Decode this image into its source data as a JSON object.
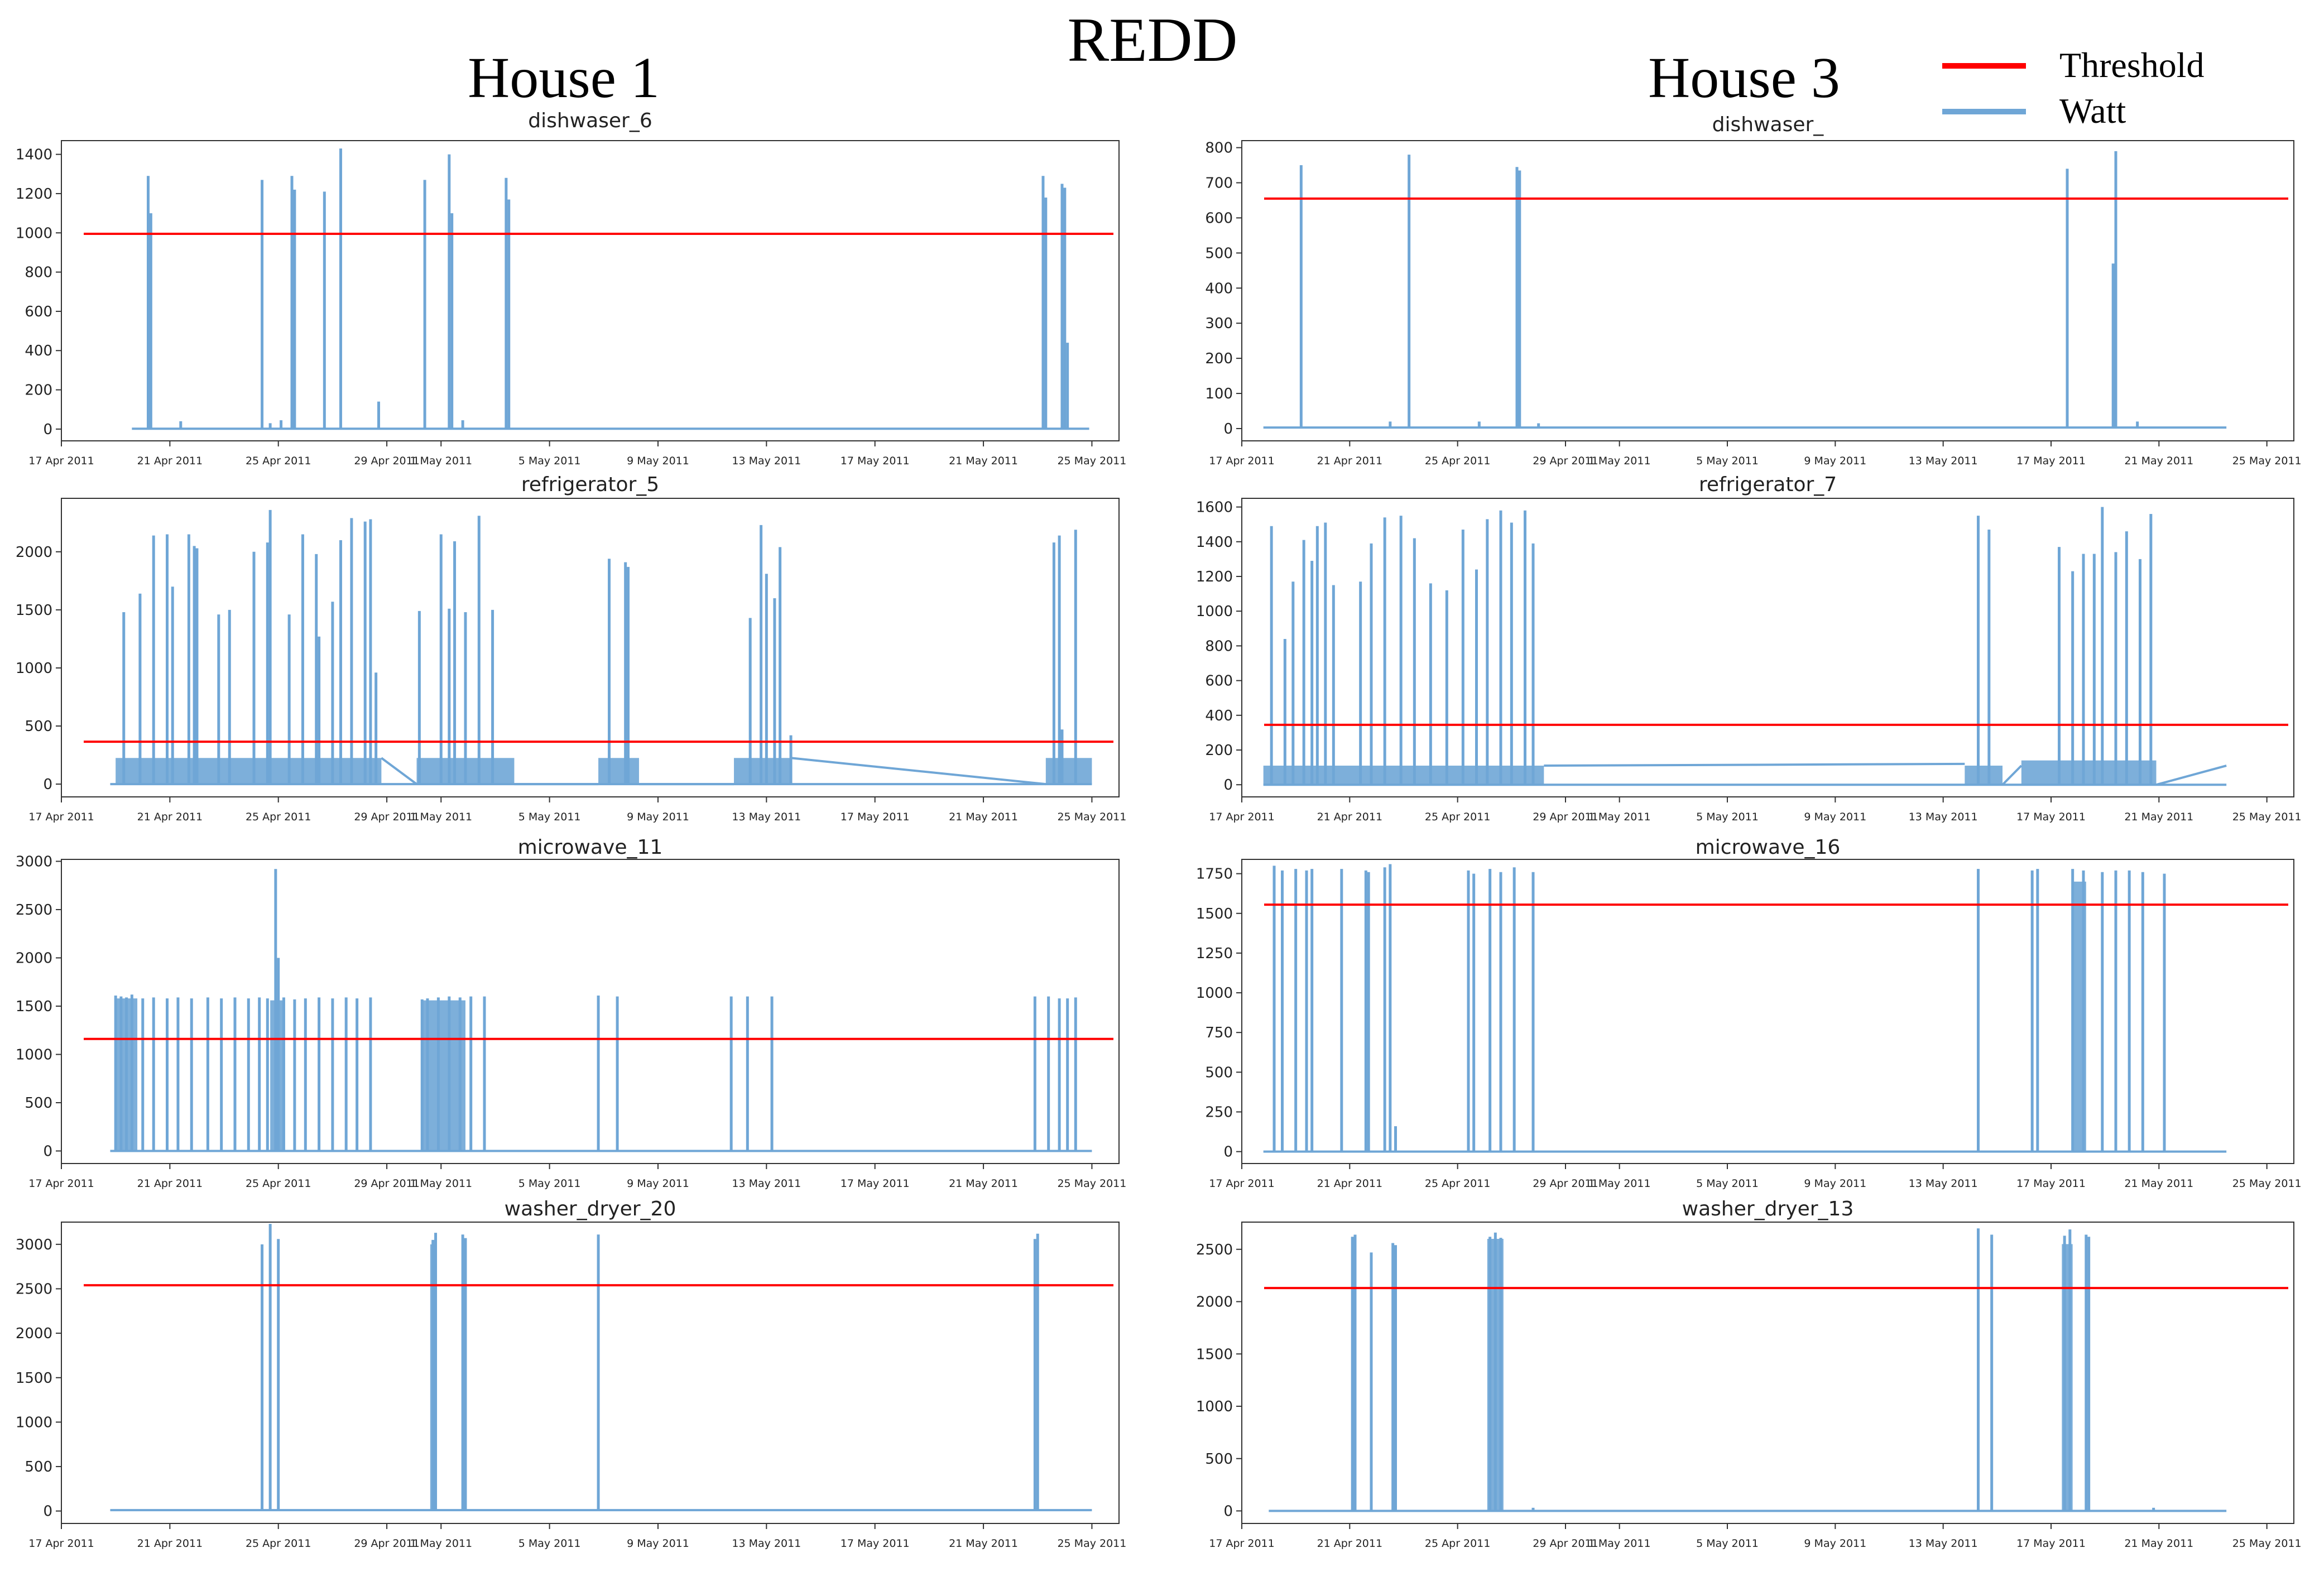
{
  "figure": {
    "title": "REDD",
    "column_titles": [
      "House 1",
      "House 3"
    ],
    "legend": [
      {
        "label": "Threshold",
        "color": "#ff0000"
      },
      {
        "label": "Watt",
        "color": "#6fa6d6"
      }
    ]
  },
  "chart_data": [
    {
      "type": "line",
      "title": "dishwaser_6",
      "house": "House 1",
      "threshold": 995,
      "ylim": [
        -60,
        1470
      ],
      "yticks": [
        0,
        200,
        400,
        600,
        800,
        1000,
        1200,
        1400
      ],
      "xlim": [
        0,
        39
      ],
      "data_range": [
        2.6,
        37.9
      ],
      "xtick_positions": [
        0,
        4,
        8,
        12,
        14,
        18,
        22,
        26,
        30,
        34,
        38
      ],
      "xtick_labels": [
        "17 Apr 2011",
        "21 Apr 2011",
        "25 Apr 2011",
        "29 Apr 2011",
        "1 May 2011",
        "5 May 2011",
        "9 May 2011",
        "13 May 2011",
        "17 May 2011",
        "21 May 2011",
        "25 May 2011"
      ],
      "baseline": 2,
      "spikes": [
        [
          3.2,
          1290
        ],
        [
          3.3,
          1100
        ],
        [
          7.4,
          1270
        ],
        [
          8.5,
          1290
        ],
        [
          8.6,
          1220
        ],
        [
          9.7,
          1210
        ],
        [
          10.3,
          1430
        ],
        [
          11.7,
          140
        ],
        [
          13.4,
          1270
        ],
        [
          14.3,
          1400
        ],
        [
          14.4,
          1100
        ],
        [
          16.4,
          1280
        ],
        [
          16.5,
          1170
        ],
        [
          36.2,
          1290
        ],
        [
          36.3,
          1180
        ],
        [
          36.9,
          1250
        ],
        [
          37.0,
          1230
        ],
        [
          37.1,
          440
        ],
        [
          4.4,
          40
        ],
        [
          8.1,
          45
        ],
        [
          7.7,
          30
        ],
        [
          14.8,
          45
        ]
      ],
      "blocks": [],
      "plateaus": []
    },
    {
      "type": "line",
      "title": "dishwaser_",
      "house": "House 3",
      "threshold": 655,
      "ylim": [
        -35,
        820
      ],
      "yticks": [
        0,
        100,
        200,
        300,
        400,
        500,
        600,
        700,
        800
      ],
      "xlim": [
        0,
        39
      ],
      "data_range": [
        0.8,
        36.5
      ],
      "xtick_positions": [
        0,
        4,
        8,
        12,
        14,
        18,
        22,
        26,
        30,
        34,
        38
      ],
      "xtick_labels": [
        "17 Apr 2011",
        "21 Apr 2011",
        "25 Apr 2011",
        "29 Apr 2011",
        "1 May 2011",
        "5 May 2011",
        "9 May 2011",
        "13 May 2011",
        "17 May 2011",
        "21 May 2011",
        "25 May 2011"
      ],
      "baseline": 3,
      "spikes": [
        [
          2.2,
          750
        ],
        [
          6.2,
          780
        ],
        [
          10.2,
          745
        ],
        [
          10.3,
          735
        ],
        [
          30.6,
          740
        ],
        [
          32.4,
          790
        ],
        [
          32.3,
          470
        ],
        [
          5.5,
          20
        ],
        [
          8.8,
          20
        ],
        [
          11.0,
          15
        ],
        [
          33.2,
          20
        ]
      ],
      "blocks": [],
      "plateaus": []
    },
    {
      "type": "line",
      "title": "refrigerator_5",
      "house": "House 1",
      "threshold": 365,
      "ylim": [
        -110,
        2460
      ],
      "yticks": [
        0,
        500,
        1000,
        1500,
        2000
      ],
      "xlim": [
        0,
        39
      ],
      "data_range": [
        1.8,
        38.0
      ],
      "xtick_positions": [
        0,
        4,
        8,
        12,
        14,
        18,
        22,
        26,
        30,
        34,
        38
      ],
      "xtick_labels": [
        "17 Apr 2011",
        "21 Apr 2011",
        "25 Apr 2011",
        "29 Apr 2011",
        "1 May 2011",
        "5 May 2011",
        "9 May 2011",
        "13 May 2011",
        "17 May 2011",
        "21 May 2011",
        "25 May 2011"
      ],
      "baseline": 0,
      "spikes": [
        [
          2.3,
          1480
        ],
        [
          2.9,
          1640
        ],
        [
          3.4,
          2140
        ],
        [
          3.9,
          2150
        ],
        [
          4.1,
          1700
        ],
        [
          4.7,
          2150
        ],
        [
          4.9,
          2050
        ],
        [
          5.0,
          2030
        ],
        [
          5.8,
          1460
        ],
        [
          6.2,
          1500
        ],
        [
          7.1,
          2000
        ],
        [
          7.6,
          2080
        ],
        [
          7.7,
          2360
        ],
        [
          8.4,
          1460
        ],
        [
          8.9,
          2150
        ],
        [
          9.4,
          1980
        ],
        [
          9.5,
          1270
        ],
        [
          10.0,
          1570
        ],
        [
          10.3,
          2100
        ],
        [
          10.7,
          2290
        ],
        [
          11.2,
          2260
        ],
        [
          11.4,
          2280
        ],
        [
          11.6,
          960
        ],
        [
          13.2,
          1490
        ],
        [
          14.0,
          2150
        ],
        [
          14.3,
          1510
        ],
        [
          14.5,
          2090
        ],
        [
          14.9,
          1480
        ],
        [
          15.4,
          2310
        ],
        [
          15.9,
          1500
        ],
        [
          20.2,
          1940
        ],
        [
          20.8,
          1910
        ],
        [
          20.9,
          1870
        ],
        [
          25.4,
          1430
        ],
        [
          25.8,
          2230
        ],
        [
          26.0,
          1810
        ],
        [
          26.3,
          1600
        ],
        [
          26.5,
          2040
        ],
        [
          26.9,
          420
        ],
        [
          36.6,
          2080
        ],
        [
          36.8,
          2140
        ],
        [
          36.9,
          470
        ],
        [
          37.4,
          2190
        ]
      ],
      "blocks": [
        [
          2.0,
          11.8,
          225
        ],
        [
          13.1,
          16.7,
          225
        ],
        [
          19.8,
          21.3,
          225
        ],
        [
          24.8,
          26.9,
          225
        ],
        [
          36.3,
          38.0,
          225
        ]
      ],
      "plateaus": [
        [
          11.8,
          13.1,
          225,
          0
        ],
        [
          16.7,
          19.8,
          0,
          0
        ],
        [
          21.3,
          24.8,
          0,
          0
        ],
        [
          26.9,
          36.3,
          225,
          0
        ]
      ]
    },
    {
      "type": "line",
      "title": "refrigerator_7",
      "house": "House 3",
      "threshold": 345,
      "ylim": [
        -70,
        1650
      ],
      "yticks": [
        0,
        200,
        400,
        600,
        800,
        1000,
        1200,
        1400,
        1600
      ],
      "xlim": [
        0,
        39
      ],
      "data_range": [
        0.8,
        36.5
      ],
      "xtick_positions": [
        0,
        4,
        8,
        12,
        14,
        18,
        22,
        26,
        30,
        34,
        38
      ],
      "xtick_labels": [
        "17 Apr 2011",
        "21 Apr 2011",
        "25 Apr 2011",
        "29 Apr 2011",
        "1 May 2011",
        "5 May 2011",
        "9 May 2011",
        "13 May 2011",
        "17 May 2011",
        "21 May 2011",
        "25 May 2011"
      ],
      "baseline": 0,
      "spikes": [
        [
          1.1,
          1490
        ],
        [
          1.6,
          840
        ],
        [
          1.9,
          1170
        ],
        [
          2.3,
          1410
        ],
        [
          2.6,
          1290
        ],
        [
          2.8,
          1490
        ],
        [
          3.1,
          1510
        ],
        [
          3.4,
          1150
        ],
        [
          4.4,
          1170
        ],
        [
          4.8,
          1390
        ],
        [
          5.3,
          1540
        ],
        [
          5.9,
          1550
        ],
        [
          6.4,
          1420
        ],
        [
          7.0,
          1160
        ],
        [
          7.6,
          1120
        ],
        [
          8.2,
          1470
        ],
        [
          8.7,
          1240
        ],
        [
          9.1,
          1530
        ],
        [
          9.6,
          1580
        ],
        [
          10.0,
          1510
        ],
        [
          10.5,
          1580
        ],
        [
          10.8,
          1390
        ],
        [
          27.3,
          1550
        ],
        [
          27.7,
          1470
        ],
        [
          30.3,
          1370
        ],
        [
          30.8,
          1230
        ],
        [
          31.2,
          1330
        ],
        [
          31.6,
          1330
        ],
        [
          31.9,
          1600
        ],
        [
          32.4,
          1340
        ],
        [
          32.8,
          1460
        ],
        [
          33.3,
          1300
        ],
        [
          33.7,
          1560
        ]
      ],
      "blocks": [
        [
          0.8,
          11.2,
          110
        ],
        [
          26.8,
          28.2,
          110
        ],
        [
          28.9,
          33.9,
          140
        ]
      ],
      "plateaus": [
        [
          11.2,
          26.8,
          110,
          120
        ],
        [
          28.2,
          28.9,
          0,
          110
        ],
        [
          33.9,
          36.5,
          0,
          110
        ]
      ]
    },
    {
      "type": "line",
      "title": "microwave_11",
      "house": "House 1",
      "threshold": 1160,
      "ylim": [
        -130,
        3020
      ],
      "yticks": [
        0,
        500,
        1000,
        1500,
        2000,
        2500,
        3000
      ],
      "xlim": [
        0,
        39
      ],
      "data_range": [
        1.8,
        38.0
      ],
      "xtick_positions": [
        0,
        4,
        8,
        12,
        14,
        18,
        22,
        26,
        30,
        34,
        38
      ],
      "xtick_labels": [
        "17 Apr 2011",
        "21 Apr 2011",
        "25 Apr 2011",
        "29 Apr 2011",
        "1 May 2011",
        "5 May 2011",
        "9 May 2011",
        "13 May 2011",
        "17 May 2011",
        "21 May 2011",
        "25 May 2011"
      ],
      "baseline": 0,
      "spikes": [
        [
          2.0,
          1610
        ],
        [
          2.2,
          1600
        ],
        [
          2.4,
          1590
        ],
        [
          2.6,
          1620
        ],
        [
          3.0,
          1580
        ],
        [
          3.4,
          1590
        ],
        [
          3.9,
          1580
        ],
        [
          4.3,
          1590
        ],
        [
          4.8,
          1580
        ],
        [
          5.4,
          1590
        ],
        [
          5.9,
          1580
        ],
        [
          6.4,
          1590
        ],
        [
          6.9,
          1580
        ],
        [
          7.3,
          1590
        ],
        [
          7.6,
          1580
        ],
        [
          7.9,
          2920
        ],
        [
          8.0,
          2000
        ],
        [
          8.2,
          1590
        ],
        [
          8.6,
          1570
        ],
        [
          9.0,
          1580
        ],
        [
          9.5,
          1590
        ],
        [
          10.0,
          1580
        ],
        [
          10.5,
          1590
        ],
        [
          10.9,
          1580
        ],
        [
          11.4,
          1590
        ],
        [
          13.3,
          1570
        ],
        [
          13.5,
          1580
        ],
        [
          13.9,
          1590
        ],
        [
          14.3,
          1600
        ],
        [
          14.7,
          1590
        ],
        [
          15.1,
          1600
        ],
        [
          15.6,
          1600
        ],
        [
          19.8,
          1610
        ],
        [
          20.5,
          1600
        ],
        [
          24.7,
          1600
        ],
        [
          25.3,
          1600
        ],
        [
          26.2,
          1600
        ],
        [
          35.9,
          1600
        ],
        [
          36.4,
          1600
        ],
        [
          36.8,
          1580
        ],
        [
          37.1,
          1580
        ],
        [
          37.4,
          1590
        ]
      ],
      "blocks": [
        [
          2.0,
          2.8,
          1580
        ],
        [
          7.7,
          8.2,
          1560
        ],
        [
          13.3,
          14.9,
          1560
        ]
      ],
      "plateaus": []
    },
    {
      "type": "line",
      "title": "microwave_16",
      "house": "House 3",
      "threshold": 1555,
      "ylim": [
        -75,
        1840
      ],
      "yticks": [
        0,
        250,
        500,
        750,
        1000,
        1250,
        1500,
        1750
      ],
      "xlim": [
        0,
        39
      ],
      "data_range": [
        0.8,
        36.5
      ],
      "xtick_positions": [
        0,
        4,
        8,
        12,
        14,
        18,
        22,
        26,
        30,
        34,
        38
      ],
      "xtick_labels": [
        "17 Apr 2011",
        "21 Apr 2011",
        "25 Apr 2011",
        "29 Apr 2011",
        "1 May 2011",
        "5 May 2011",
        "9 May 2011",
        "13 May 2011",
        "17 May 2011",
        "21 May 2011",
        "25 May 2011"
      ],
      "baseline": 0,
      "spikes": [
        [
          1.2,
          1800
        ],
        [
          1.5,
          1770
        ],
        [
          2.0,
          1780
        ],
        [
          2.4,
          1770
        ],
        [
          2.6,
          1780
        ],
        [
          3.7,
          1780
        ],
        [
          4.6,
          1770
        ],
        [
          4.7,
          1760
        ],
        [
          5.3,
          1790
        ],
        [
          5.5,
          1810
        ],
        [
          5.7,
          160
        ],
        [
          8.4,
          1770
        ],
        [
          8.6,
          1750
        ],
        [
          9.2,
          1780
        ],
        [
          9.6,
          1760
        ],
        [
          10.1,
          1790
        ],
        [
          10.8,
          1760
        ],
        [
          27.3,
          1780
        ],
        [
          29.3,
          1770
        ],
        [
          29.5,
          1780
        ],
        [
          30.8,
          1780
        ],
        [
          31.2,
          1770
        ],
        [
          31.9,
          1760
        ],
        [
          32.4,
          1770
        ],
        [
          32.9,
          1770
        ],
        [
          33.4,
          1760
        ],
        [
          34.2,
          1750
        ]
      ],
      "blocks": [
        [
          30.8,
          31.3,
          1700
        ]
      ],
      "plateaus": []
    },
    {
      "type": "line",
      "title": "washer_dryer_20",
      "house": "House 1",
      "threshold": 2540,
      "ylim": [
        -140,
        3250
      ],
      "yticks": [
        0,
        500,
        1000,
        1500,
        2000,
        2500,
        3000
      ],
      "xlim": [
        0,
        39
      ],
      "data_range": [
        1.8,
        38.0
      ],
      "xtick_positions": [
        0,
        4,
        8,
        12,
        14,
        18,
        22,
        26,
        30,
        34,
        38
      ],
      "xtick_labels": [
        "17 Apr 2011",
        "21 Apr 2011",
        "25 Apr 2011",
        "29 Apr 2011",
        "1 May 2011",
        "5 May 2011",
        "9 May 2011",
        "13 May 2011",
        "17 May 2011",
        "21 May 2011",
        "25 May 2011"
      ],
      "baseline": 10,
      "spikes": [
        [
          7.4,
          3000
        ],
        [
          7.7,
          3230
        ],
        [
          8.0,
          3060
        ],
        [
          13.7,
          3050
        ],
        [
          13.8,
          3130
        ],
        [
          14.8,
          3110
        ],
        [
          14.9,
          3070
        ],
        [
          19.8,
          3110
        ],
        [
          35.9,
          3060
        ],
        [
          36.0,
          3120
        ]
      ],
      "blocks": [
        [
          13.6,
          13.85,
          3000
        ]
      ],
      "plateaus": []
    },
    {
      "type": "line",
      "title": "washer_dryer_13",
      "house": "House 3",
      "threshold": 2130,
      "ylim": [
        -120,
        2760
      ],
      "yticks": [
        0,
        500,
        1000,
        1500,
        2000,
        2500
      ],
      "xlim": [
        0,
        39
      ],
      "data_range": [
        1.0,
        36.5
      ],
      "xtick_positions": [
        0,
        4,
        8,
        12,
        14,
        18,
        22,
        26,
        30,
        34,
        38
      ],
      "xtick_labels": [
        "17 Apr 2011",
        "21 Apr 2011",
        "25 Apr 2011",
        "29 Apr 2011",
        "1 May 2011",
        "5 May 2011",
        "9 May 2011",
        "13 May 2011",
        "17 May 2011",
        "21 May 2011",
        "25 May 2011"
      ],
      "baseline": 0,
      "spikes": [
        [
          4.1,
          2620
        ],
        [
          4.2,
          2640
        ],
        [
          4.8,
          2470
        ],
        [
          5.6,
          2560
        ],
        [
          5.7,
          2540
        ],
        [
          9.2,
          2620
        ],
        [
          9.4,
          2660
        ],
        [
          9.6,
          2610
        ],
        [
          27.3,
          2700
        ],
        [
          27.8,
          2640
        ],
        [
          30.5,
          2630
        ],
        [
          30.7,
          2690
        ],
        [
          31.3,
          2640
        ],
        [
          31.4,
          2620
        ],
        [
          10.8,
          30
        ],
        [
          33.8,
          30
        ]
      ],
      "blocks": [
        [
          9.1,
          9.7,
          2600
        ],
        [
          30.4,
          30.8,
          2550
        ]
      ],
      "plateaus": []
    }
  ]
}
